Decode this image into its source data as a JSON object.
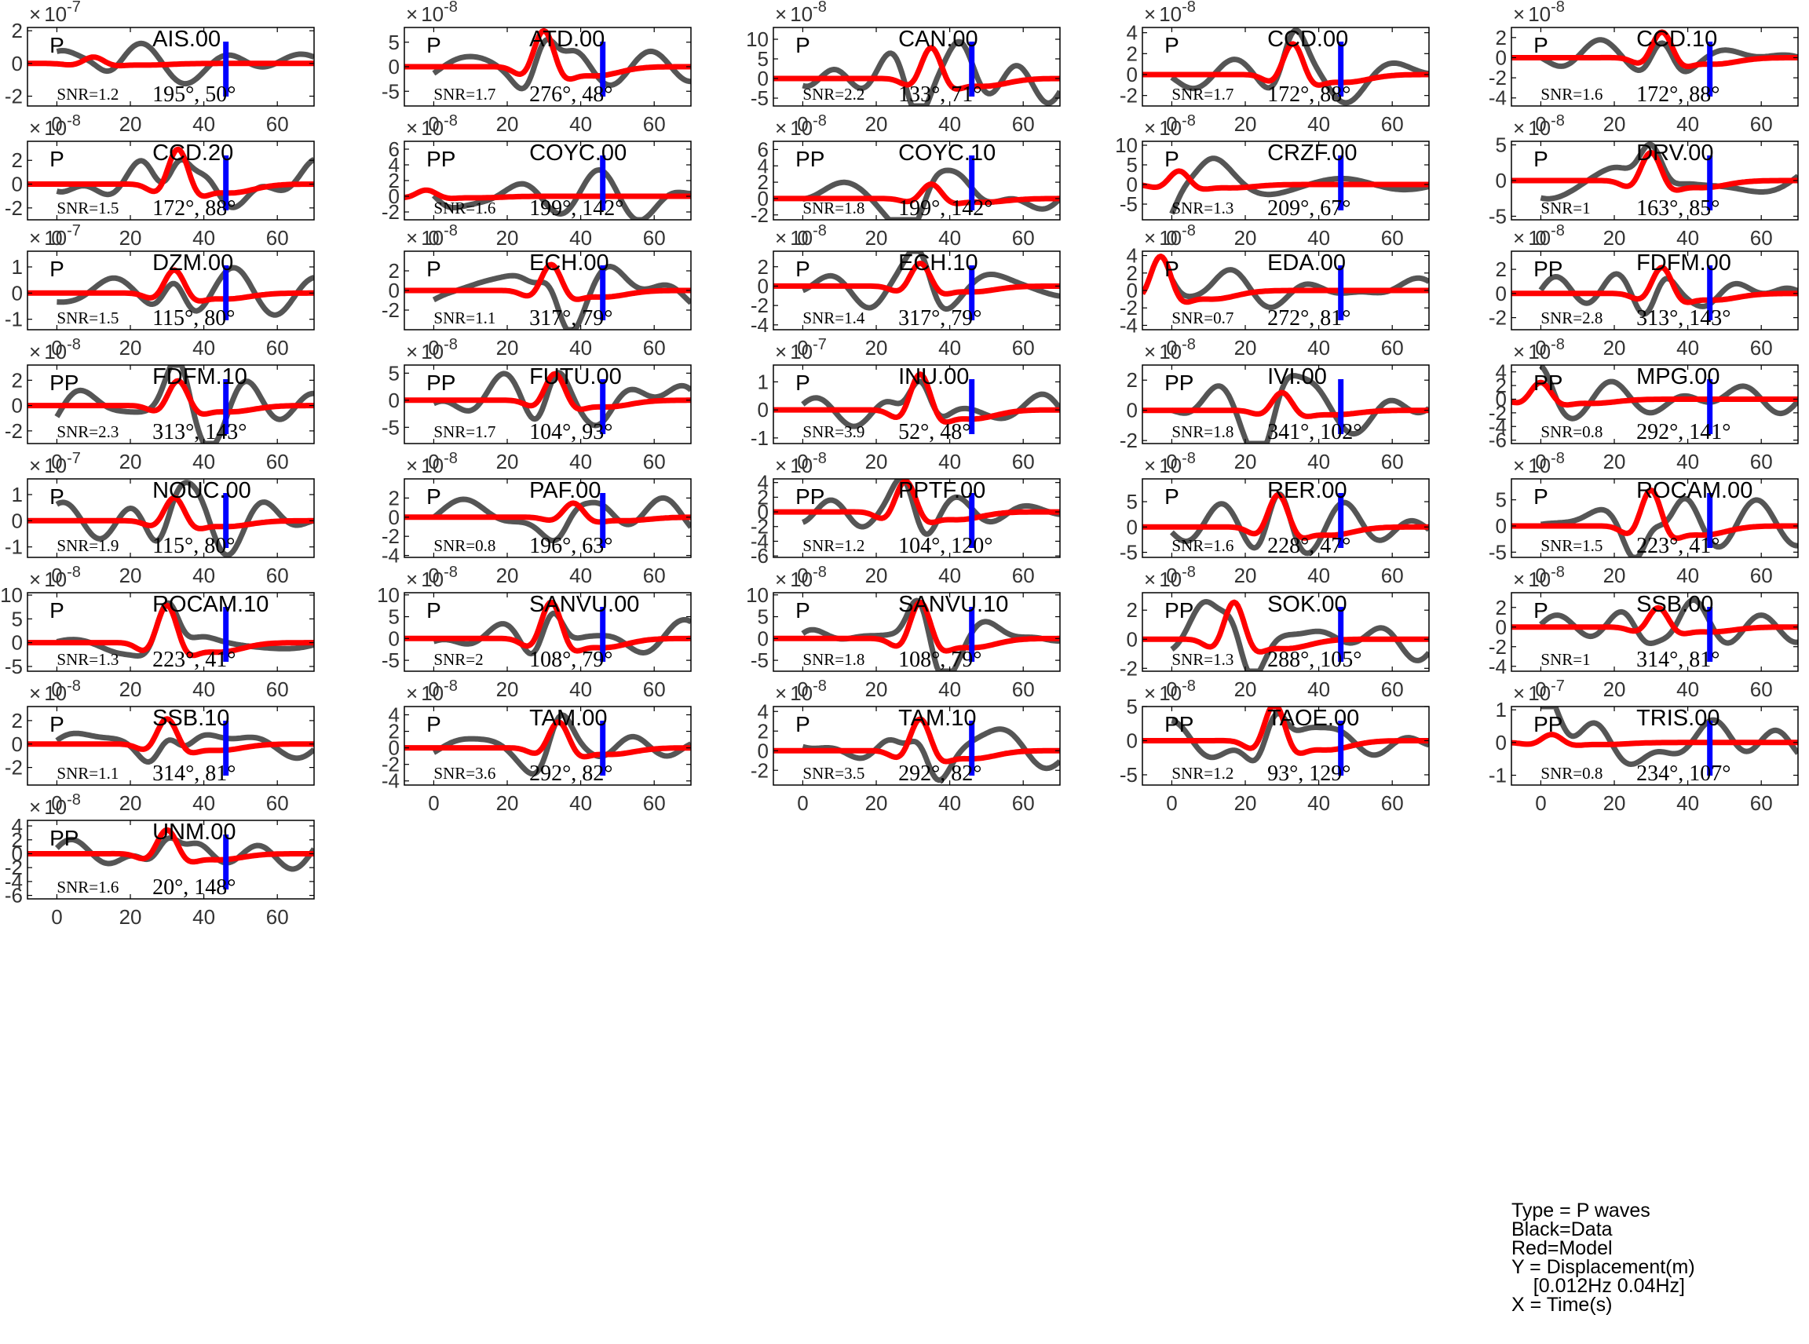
{
  "chart_data": {
    "type": "line",
    "xticks": [
      0,
      20,
      40,
      60
    ],
    "xlim": [
      -8,
      70
    ],
    "marker_x": 46,
    "colors": {
      "data": "#555555",
      "model": "#ff0000",
      "marker": "#0000ff",
      "axis": "#000000",
      "ticklabel": "#333333"
    },
    "panels": [
      {
        "station": "AIS.00",
        "phase": "P",
        "snr": "SNR=1.2",
        "az": "195°, 50°",
        "exponent": "-7",
        "ylim": [
          -2.6,
          2.2
        ],
        "yticks": [
          "2",
          "0",
          "-2"
        ],
        "ytick_values": [
          2,
          0,
          -2
        ],
        "seed": 1,
        "amp": 1.9,
        "ma": 0.4,
        "mc": 10
      },
      {
        "station": "ATD.00",
        "phase": "P",
        "snr": "SNR=1.7",
        "az": "276°, 48°",
        "exponent": "-8",
        "ylim": [
          -8,
          8
        ],
        "yticks": [
          "5",
          "0",
          "-5"
        ],
        "ytick_values": [
          5,
          0,
          -5
        ],
        "seed": 2,
        "amp": 7,
        "ma": 7.5,
        "mc": 30
      },
      {
        "station": "CAN.00",
        "phase": "P",
        "snr": "SNR=2.2",
        "az": "133°, 71°",
        "exponent": "-8",
        "ylim": [
          -7,
          13
        ],
        "yticks": [
          "10",
          "5",
          "0",
          "-5"
        ],
        "ytick_values": [
          10,
          5,
          0,
          -5
        ],
        "seed": 3,
        "amp": 10,
        "ma": 8,
        "mc": 35
      },
      {
        "station": "CCD.00",
        "phase": "P",
        "snr": "SNR=1.7",
        "az": "172°, 88°",
        "exponent": "-8",
        "ylim": [
          -3,
          4.5
        ],
        "yticks": [
          "4",
          "2",
          "0",
          "-2"
        ],
        "ytick_values": [
          4,
          2,
          0,
          -2
        ],
        "seed": 4,
        "amp": 3.2,
        "ma": 3,
        "mc": 33
      },
      {
        "station": "CCD.10",
        "phase": "P",
        "snr": "SNR=1.6",
        "az": "172°, 88°",
        "exponent": "-8",
        "ylim": [
          -4.8,
          3
        ],
        "yticks": [
          "2",
          "0",
          "-2",
          "-4"
        ],
        "ytick_values": [
          2,
          0,
          -2,
          -4
        ],
        "seed": 5,
        "amp": 2.8,
        "ma": 2.6,
        "mc": 33
      },
      {
        "station": "CCD.20",
        "phase": "P",
        "snr": "SNR=1.5",
        "az": "172°, 88°",
        "exponent": "-8",
        "ylim": [
          -3,
          3.6
        ],
        "yticks": [
          "2",
          "0",
          "-2"
        ],
        "ytick_values": [
          2,
          0,
          -2
        ],
        "seed": 6,
        "amp": 3,
        "ma": 3,
        "mc": 33
      },
      {
        "station": "COYC.00",
        "phase": "PP",
        "snr": "SNR=1.6",
        "az": "199°, 142°",
        "exponent": "-8",
        "ylim": [
          -3,
          7
        ],
        "yticks": [
          "6",
          "4",
          "2",
          "0",
          "-2"
        ],
        "ytick_values": [
          6,
          4,
          2,
          0,
          -2
        ],
        "seed": 7,
        "amp": 5,
        "ma": 0.8,
        "mc": -2
      },
      {
        "station": "COYC.10",
        "phase": "PP",
        "snr": "SNR=1.8",
        "az": "199°, 142°",
        "exponent": "-8",
        "ylim": [
          -2.6,
          7
        ],
        "yticks": [
          "6",
          "4",
          "2",
          "0",
          "-2"
        ],
        "ytick_values": [
          6,
          4,
          2,
          0,
          -2
        ],
        "seed": 8,
        "amp": 5,
        "ma": 1.8,
        "mc": 35
      },
      {
        "station": "CRZF.00",
        "phase": "P",
        "snr": "SNR=1.3",
        "az": "209°, 67°",
        "exponent": "-8",
        "ylim": [
          -9,
          11
        ],
        "yticks": [
          "10",
          "5",
          "0",
          "-5"
        ],
        "ytick_values": [
          10,
          5,
          0,
          -5
        ],
        "seed": 9,
        "amp": 8,
        "ma": 3.5,
        "mc": 2
      },
      {
        "station": "DRV.00",
        "phase": "P",
        "snr": "SNR=1",
        "az": "163°, 85°",
        "exponent": "-8",
        "ylim": [
          -5.5,
          5.5
        ],
        "yticks": [
          "5",
          "0",
          "-5"
        ],
        "ytick_values": [
          5,
          0,
          -5
        ],
        "seed": 10,
        "amp": 4.5,
        "ma": 4,
        "mc": 30
      },
      {
        "station": "DZM.00",
        "phase": "P",
        "snr": "SNR=1.5",
        "az": "115°, 80°",
        "exponent": "-7",
        "ylim": [
          -1.4,
          1.6
        ],
        "yticks": [
          "1",
          "0",
          "-1"
        ],
        "ytick_values": [
          1,
          0,
          -1
        ],
        "seed": 11,
        "amp": 1.2,
        "ma": 0.9,
        "mc": 32
      },
      {
        "station": "ECH.00",
        "phase": "P",
        "snr": "SNR=1.1",
        "az": "317°, 79°",
        "exponent": "-8",
        "ylim": [
          -4,
          4
        ],
        "yticks": [
          "2",
          "0",
          "-2"
        ],
        "ytick_values": [
          2,
          0,
          -2
        ],
        "seed": 12,
        "amp": 3.3,
        "ma": 2.7,
        "mc": 32
      },
      {
        "station": "ECH.10",
        "phase": "P",
        "snr": "SNR=1.4",
        "az": "317°, 79°",
        "exponent": "-8",
        "ylim": [
          -4.5,
          3.6
        ],
        "yticks": [
          "2",
          "0",
          "-2",
          "-4"
        ],
        "ytick_values": [
          2,
          0,
          -2,
          -4
        ],
        "seed": 13,
        "amp": 3.3,
        "ma": 2.4,
        "mc": 32
      },
      {
        "station": "EDA.00",
        "phase": "P",
        "snr": "SNR=0.7",
        "az": "272°, 81°",
        "exponent": "-8",
        "ylim": [
          -4.5,
          4.5
        ],
        "yticks": [
          "4",
          "2",
          "0",
          "-2",
          "-4"
        ],
        "ytick_values": [
          4,
          2,
          0,
          -2,
          -4
        ],
        "seed": 14,
        "amp": 2.5,
        "ma": 4,
        "mc": -3
      },
      {
        "station": "FDFM.00",
        "phase": "PP",
        "snr": "SNR=2.8",
        "az": "313°, 143°",
        "exponent": "-8",
        "ylim": [
          -3,
          3.5
        ],
        "yticks": [
          "2",
          "0",
          "-2"
        ],
        "ytick_values": [
          2,
          0,
          -2
        ],
        "seed": 15,
        "amp": 2.5,
        "ma": 2.2,
        "mc": 33
      },
      {
        "station": "FDFM.10",
        "phase": "PP",
        "snr": "SNR=2.3",
        "az": "313°, 143°",
        "exponent": "-8",
        "ylim": [
          -3,
          3.2
        ],
        "yticks": [
          "2",
          "0",
          "-2"
        ],
        "ytick_values": [
          2,
          0,
          -2
        ],
        "seed": 16,
        "amp": 2.6,
        "ma": 2,
        "mc": 33
      },
      {
        "station": "FUTU.00",
        "phase": "PP",
        "snr": "SNR=1.7",
        "az": "104°, 93°",
        "exponent": "-8",
        "ylim": [
          -8,
          6.5
        ],
        "yticks": [
          "5",
          "0",
          "-5"
        ],
        "ytick_values": [
          5,
          0,
          -5
        ],
        "seed": 17,
        "amp": 5.5,
        "ma": 5,
        "mc": 33
      },
      {
        "station": "INU.00",
        "phase": "P",
        "snr": "SNR=3.9",
        "az": "52°, 48°",
        "exponent": "-7",
        "ylim": [
          -1.2,
          1.6
        ],
        "yticks": [
          "1",
          "0",
          "-1"
        ],
        "ytick_values": [
          1,
          0,
          -1
        ],
        "seed": 18,
        "amp": 1.2,
        "ma": 1.3,
        "mc": 32
      },
      {
        "station": "IVI.00",
        "phase": "PP",
        "snr": "SNR=1.8",
        "az": "341°, 102°",
        "exponent": "-8",
        "ylim": [
          -2.2,
          3
        ],
        "yticks": [
          "2",
          "0",
          "-2"
        ],
        "ytick_values": [
          2,
          0,
          -2
        ],
        "seed": 19,
        "amp": 2,
        "ma": 1.2,
        "mc": 30
      },
      {
        "station": "MPG.00",
        "phase": "PP",
        "snr": "SNR=0.8",
        "az": "292°, 141°",
        "exponent": "-8",
        "ylim": [
          -6.5,
          5
        ],
        "yticks": [
          "4",
          "2",
          "0",
          "-2",
          "-4",
          "-6"
        ],
        "ytick_values": [
          4,
          2,
          0,
          -2,
          -4,
          -6
        ],
        "seed": 20,
        "amp": 4,
        "ma": 2.5,
        "mc": 0
      },
      {
        "station": "NOUC.00",
        "phase": "P",
        "snr": "SNR=1.9",
        "az": "115°, 80°",
        "exponent": "-7",
        "ylim": [
          -1.4,
          1.6
        ],
        "yticks": [
          "1",
          "0",
          "-1"
        ],
        "ytick_values": [
          1,
          0,
          -1
        ],
        "seed": 21,
        "amp": 1.2,
        "ma": 0.9,
        "mc": 32
      },
      {
        "station": "PAF.00",
        "phase": "P",
        "snr": "SNR=0.8",
        "az": "196°, 63°",
        "exponent": "-8",
        "ylim": [
          -4.2,
          4
        ],
        "yticks": [
          "2",
          "0",
          "-2",
          "-4"
        ],
        "ytick_values": [
          2,
          0,
          -2,
          -4
        ],
        "seed": 22,
        "amp": 3.5,
        "ma": 1.5,
        "mc": 38
      },
      {
        "station": "PPTF.00",
        "phase": "PP",
        "snr": "SNR=1.2",
        "az": "104°, 120°",
        "exponent": "-8",
        "ylim": [
          -6.2,
          4.5
        ],
        "yticks": [
          "4",
          "2",
          "0",
          "-2",
          "-4",
          "-6"
        ],
        "ytick_values": [
          4,
          2,
          0,
          -2,
          -4,
          -6
        ],
        "seed": 23,
        "amp": 4,
        "ma": 4.3,
        "mc": 28
      },
      {
        "station": "RER.00",
        "phase": "P",
        "snr": "SNR=1.6",
        "az": "228°, 47°",
        "exponent": "-8",
        "ylim": [
          -6,
          9.5
        ],
        "yticks": [
          "5",
          "0",
          "-5"
        ],
        "ytick_values": [
          5,
          0,
          -5
        ],
        "seed": 24,
        "amp": 6.5,
        "ma": 6.5,
        "mc": 29
      },
      {
        "station": "ROCAM.00",
        "phase": "P",
        "snr": "SNR=1.5",
        "az": "223°, 41°",
        "exponent": "-8",
        "ylim": [
          -6,
          9
        ],
        "yticks": [
          "5",
          "0",
          "-5"
        ],
        "ytick_values": [
          5,
          0,
          -5
        ],
        "seed": 25,
        "amp": 6.5,
        "ma": 7,
        "mc": 30
      },
      {
        "station": "ROCAM.10",
        "phase": "P",
        "snr": "SNR=1.3",
        "az": "223°, 41°",
        "exponent": "-8",
        "ylim": [
          -6,
          10.5
        ],
        "yticks": [
          "10",
          "5",
          "0",
          "-5"
        ],
        "ytick_values": [
          10,
          5,
          0,
          -5
        ],
        "seed": 26,
        "amp": 8,
        "ma": 8,
        "mc": 30
      },
      {
        "station": "SANVU.00",
        "phase": "P",
        "snr": "SNR=2",
        "az": "108°, 79°",
        "exponent": "-8",
        "ylim": [
          -7.5,
          10.5
        ],
        "yticks": [
          "10",
          "5",
          "0",
          "-5"
        ],
        "ytick_values": [
          10,
          5,
          0,
          -5
        ],
        "seed": 27,
        "amp": 8,
        "ma": 8.5,
        "mc": 32
      },
      {
        "station": "SANVU.10",
        "phase": "P",
        "snr": "SNR=1.8",
        "az": "108°, 79°",
        "exponent": "-8",
        "ylim": [
          -7.5,
          10.5
        ],
        "yticks": [
          "10",
          "5",
          "0",
          "-5"
        ],
        "ytick_values": [
          10,
          5,
          0,
          -5
        ],
        "seed": 28,
        "amp": 8,
        "ma": 8.5,
        "mc": 32
      },
      {
        "station": "SOK.00",
        "phase": "PP",
        "snr": "SNR=1.3",
        "az": "288°, 105°",
        "exponent": "-8",
        "ylim": [
          -2.2,
          3.2
        ],
        "yticks": [
          "2",
          "0",
          "-2"
        ],
        "ytick_values": [
          2,
          0,
          -2
        ],
        "seed": 29,
        "amp": 2.2,
        "ma": 2.6,
        "mc": 17
      },
      {
        "station": "SSB.00",
        "phase": "P",
        "snr": "SNR=1",
        "az": "314°, 81°",
        "exponent": "-8",
        "ylim": [
          -4.5,
          3.5
        ],
        "yticks": [
          "2",
          "0",
          "-2",
          "-4"
        ],
        "ytick_values": [
          2,
          0,
          -2,
          -4
        ],
        "seed": 30,
        "amp": 3,
        "ma": 2,
        "mc": 32
      },
      {
        "station": "SSB.10",
        "phase": "P",
        "snr": "SNR=1.1",
        "az": "314°, 81°",
        "exponent": "-8",
        "ylim": [
          -3.5,
          3.2
        ],
        "yticks": [
          "2",
          "0",
          "-2"
        ],
        "ytick_values": [
          2,
          0,
          -2
        ],
        "seed": 31,
        "amp": 2.6,
        "ma": 2.2,
        "mc": 30
      },
      {
        "station": "TAM.00",
        "phase": "P",
        "snr": "SNR=3.6",
        "az": "292°, 82°",
        "exponent": "-8",
        "ylim": [
          -4.5,
          5
        ],
        "yticks": [
          "4",
          "2",
          "0",
          "-2",
          "-4"
        ],
        "ytick_values": [
          4,
          2,
          0,
          -2,
          -4
        ],
        "seed": 32,
        "amp": 3.5,
        "ma": 3.2,
        "mc": 34
      },
      {
        "station": "TAM.10",
        "phase": "P",
        "snr": "SNR=3.5",
        "az": "292°, 82°",
        "exponent": "-8",
        "ylim": [
          -3.5,
          4.5
        ],
        "yticks": [
          "4",
          "2",
          "0",
          "-2"
        ],
        "ytick_values": [
          4,
          2,
          0,
          -2
        ],
        "seed": 33,
        "amp": 3.5,
        "ma": 3.3,
        "mc": 32
      },
      {
        "station": "TAOE.00",
        "phase": "PP",
        "snr": "SNR=1.2",
        "az": "93°, 129°",
        "exponent": "-8",
        "ylim": [
          -6.5,
          5
        ],
        "yticks": [
          "5",
          "0",
          "-5"
        ],
        "ytick_values": [
          5,
          0,
          -5
        ],
        "seed": 34,
        "amp": 4,
        "ma": 5.5,
        "mc": 28
      },
      {
        "station": "TRIS.00",
        "phase": "PP",
        "snr": "SNR=0.8",
        "az": "234°, 107°",
        "exponent": "-7",
        "ylim": [
          -1.3,
          1.1
        ],
        "yticks": [
          "1",
          "0",
          "-1"
        ],
        "ytick_values": [
          1,
          0,
          -1
        ],
        "seed": 35,
        "amp": 0.9,
        "ma": 0.25,
        "mc": 3
      },
      {
        "station": "UNM.00",
        "phase": "PP",
        "snr": "SNR=1.6",
        "az": "20°, 148°",
        "exponent": "-8",
        "ylim": [
          -6.5,
          4.8
        ],
        "yticks": [
          "4",
          "2",
          "0",
          "-2",
          "-4",
          "-6"
        ],
        "ytick_values": [
          4,
          2,
          0,
          -2,
          -4,
          -6
        ],
        "seed": 36,
        "amp": 4.5,
        "ma": 3.5,
        "mc": 30
      }
    ]
  },
  "legend": {
    "type": "Type = P waves",
    "black": "Black=Data",
    "red": "Red=Model",
    "y": "Y = Displacement(m)",
    "band": "    [0.012Hz 0.04Hz]",
    "x": "X = Time(s)"
  }
}
